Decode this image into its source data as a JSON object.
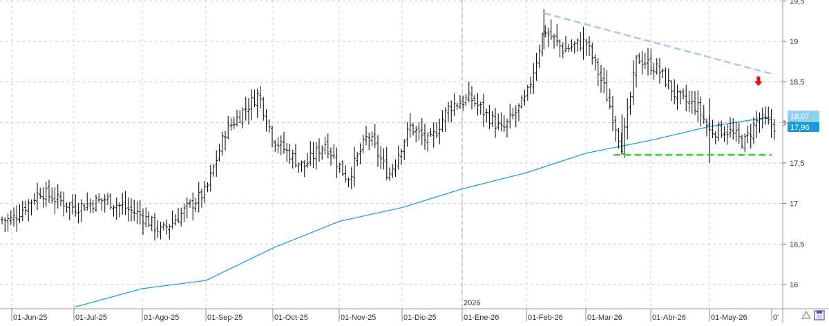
{
  "chart_data": {
    "type": "ohlc",
    "x_axis": {
      "labels": [
        "01-Jun-25",
        "01-Jul-25",
        "01-Ago-25",
        "01-Sep-25",
        "01-Oct-25",
        "01-Nov-25",
        "01-Dic-25",
        "01-Ene-26",
        "01-Feb-26",
        "01-Mar-26",
        "01-Abr-26",
        "01-May-26",
        "0'"
      ],
      "year_marker": "2026"
    },
    "y_axis": {
      "range": [
        15.7,
        19.5
      ],
      "ticks": [
        "19,5",
        "19",
        "18,5",
        "18",
        "17,5",
        "17",
        "16,5",
        "16"
      ],
      "position": "right"
    },
    "grid": true,
    "price_tags": [
      {
        "label": "18,07",
        "value": 18.07,
        "series": "sma"
      },
      {
        "label": "17,96",
        "value": 17.96,
        "series": "price"
      }
    ],
    "price_anchors": [
      {
        "date": "01-Jun-25",
        "close": 16.8
      },
      {
        "date": "15-Jun-25",
        "close": 17.15
      },
      {
        "date": "01-Jul-25",
        "close": 16.95
      },
      {
        "date": "15-Jul-25",
        "close": 17.05
      },
      {
        "date": "01-Ago-25",
        "close": 16.85
      },
      {
        "date": "10-Ago-25",
        "close": 16.65
      },
      {
        "date": "01-Sep-25",
        "close": 17.15
      },
      {
        "date": "10-Sep-25",
        "close": 17.9
      },
      {
        "date": "25-Sep-25",
        "close": 18.35
      },
      {
        "date": "01-Oct-25",
        "close": 17.8
      },
      {
        "date": "15-Oct-25",
        "close": 17.45
      },
      {
        "date": "25-Oct-25",
        "close": 17.75
      },
      {
        "date": "05-Nov-25",
        "close": 17.3
      },
      {
        "date": "15-Nov-25",
        "close": 17.85
      },
      {
        "date": "25-Nov-25",
        "close": 17.35
      },
      {
        "date": "05-Dic-25",
        "close": 17.95
      },
      {
        "date": "15-Dic-25",
        "close": 17.75
      },
      {
        "date": "25-Dic-25",
        "close": 18.2
      },
      {
        "date": "05-Ene-26",
        "close": 18.3
      },
      {
        "date": "20-Ene-26",
        "close": 17.9
      },
      {
        "date": "01-Feb-26",
        "close": 18.3
      },
      {
        "date": "10-Feb-26",
        "close": 19.15
      },
      {
        "date": "20-Feb-26",
        "close": 18.9
      },
      {
        "date": "01-Mar-26",
        "close": 19.0
      },
      {
        "date": "10-Mar-26",
        "close": 18.4
      },
      {
        "date": "18-Mar-26",
        "close": 17.7
      },
      {
        "date": "25-Mar-26",
        "close": 18.8
      },
      {
        "date": "05-Abr-26",
        "close": 18.65
      },
      {
        "date": "15-Abr-26",
        "close": 18.3
      },
      {
        "date": "25-Abr-26",
        "close": 18.2
      },
      {
        "date": "01-May-26",
        "close": 17.9
      },
      {
        "date": "10-May-26",
        "close": 17.9
      },
      {
        "date": "18-May-26",
        "close": 17.75
      },
      {
        "date": "25-May-26",
        "close": 18.05
      },
      {
        "date": "01-Jun-26",
        "close": 17.96
      }
    ],
    "sma_line": {
      "color": "#1aa3dc",
      "points": [
        {
          "date": "01-Jul-25",
          "value": 15.72
        },
        {
          "date": "01-Ago-25",
          "value": 15.95
        },
        {
          "date": "01-Sep-25",
          "value": 16.05
        },
        {
          "date": "01-Oct-25",
          "value": 16.45
        },
        {
          "date": "01-Nov-25",
          "value": 16.78
        },
        {
          "date": "01-Dic-25",
          "value": 16.95
        },
        {
          "date": "01-Ene-26",
          "value": 17.18
        },
        {
          "date": "01-Feb-26",
          "value": 17.38
        },
        {
          "date": "01-Mar-26",
          "value": 17.62
        },
        {
          "date": "01-Abr-26",
          "value": 17.78
        },
        {
          "date": "01-May-26",
          "value": 17.95
        },
        {
          "date": "01-Jun-26",
          "value": 18.07
        }
      ]
    },
    "resistance_line": {
      "color": "#a9c8ea",
      "style": "dashed",
      "from": {
        "date": "10-Feb-26",
        "value": 19.35
      },
      "to": {
        "date": "01-Jun-26",
        "value": 18.6
      }
    },
    "support_line": {
      "color": "#22dd22",
      "style": "dashed",
      "from": {
        "date": "18-Mar-26",
        "value": 17.6
      },
      "to": {
        "date": "01-Jun-26",
        "value": 17.6
      }
    },
    "annotation_arrow": {
      "color": "#ee1111",
      "date": "25-May-26",
      "value": 18.5,
      "direction": "down"
    }
  },
  "corner_icons": [
    "triangle-icon",
    "save-icon"
  ]
}
